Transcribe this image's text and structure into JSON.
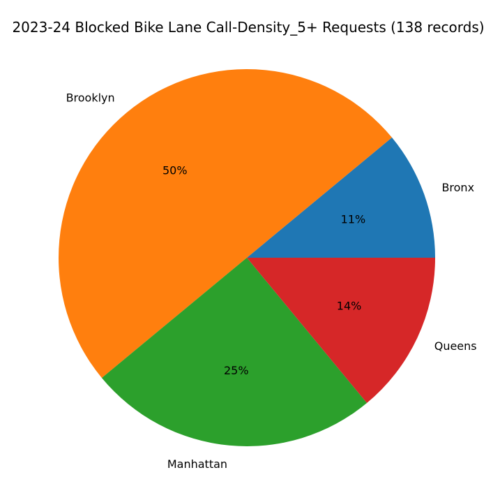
{
  "chart_data": {
    "type": "pie",
    "title": "2023-24 Blocked Bike Lane Call-Density_5+ Requests (138 records)",
    "categories": [
      "Bronx",
      "Brooklyn",
      "Manhattan",
      "Queens"
    ],
    "values": [
      11,
      50,
      25,
      14
    ],
    "value_labels": [
      "11%",
      "50%",
      "25%",
      "14%"
    ],
    "colors": [
      "#1f77b4",
      "#ff7f0e",
      "#2ca02c",
      "#d62728"
    ],
    "start_angle_deg": 0,
    "direction": "counterclockwise"
  }
}
